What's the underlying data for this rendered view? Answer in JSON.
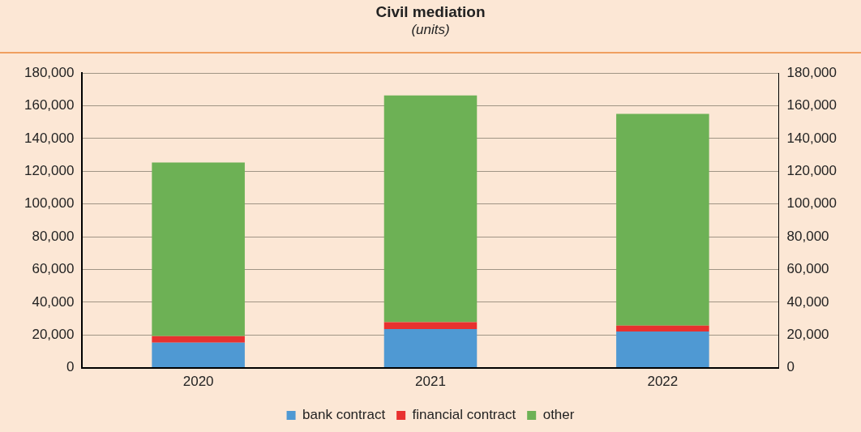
{
  "chart_data": {
    "type": "bar",
    "title": "Civil mediation",
    "subtitle": "(units)",
    "categories": [
      "2020",
      "2021",
      "2022"
    ],
    "stacked": true,
    "series": [
      {
        "name": "bank contract",
        "color": "#4f99d3",
        "values": [
          15300,
          23600,
          22100
        ]
      },
      {
        "name": "financial contract",
        "color": "#e8312f",
        "values": [
          3900,
          4200,
          3600
        ]
      },
      {
        "name": "other",
        "color": "#6db155",
        "values": [
          106200,
          138600,
          129400
        ]
      }
    ],
    "ylim": [
      0,
      180000
    ],
    "yticks": [
      {
        "value": 0,
        "label": "0"
      },
      {
        "value": 20000,
        "label": "20,000"
      },
      {
        "value": 40000,
        "label": "40,000"
      },
      {
        "value": 60000,
        "label": "60,000"
      },
      {
        "value": 80000,
        "label": "80,000"
      },
      {
        "value": 100000,
        "label": "100,000"
      },
      {
        "value": 120000,
        "label": "120,000"
      },
      {
        "value": 140000,
        "label": "140,000"
      },
      {
        "value": 160000,
        "label": "160,000"
      },
      {
        "value": 180000,
        "label": "180,000"
      }
    ],
    "y2lim": [
      0,
      180000
    ],
    "y2ticks": [
      {
        "value": 0,
        "label": "0"
      },
      {
        "value": 20000,
        "label": "20,000"
      },
      {
        "value": 40000,
        "label": "40,000"
      },
      {
        "value": 60000,
        "label": "60,000"
      },
      {
        "value": 80000,
        "label": "80,000"
      },
      {
        "value": 100000,
        "label": "100,000"
      },
      {
        "value": 120000,
        "label": "120,000"
      },
      {
        "value": 140000,
        "label": "140,000"
      },
      {
        "value": 160000,
        "label": "160,000"
      },
      {
        "value": 180000,
        "label": "180,000"
      }
    ],
    "grid": "y",
    "legend": "bottom"
  }
}
